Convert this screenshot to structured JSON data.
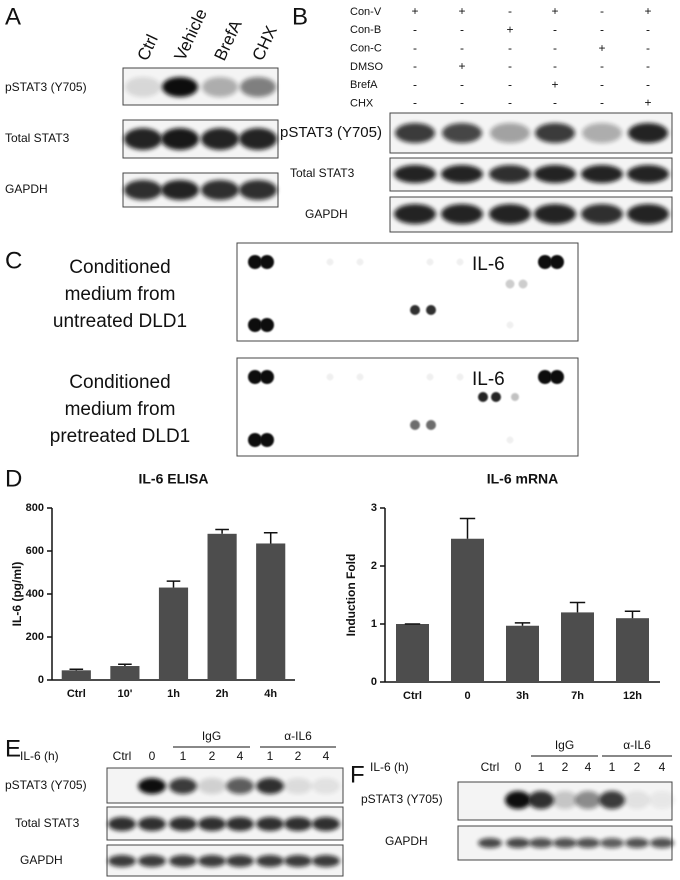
{
  "panel_labels": [
    "A",
    "B",
    "C",
    "D",
    "E",
    "F"
  ],
  "panel_a": {
    "columns": [
      "Ctrl",
      "Vehicle",
      "BrefA",
      "CHX"
    ],
    "rows": [
      "pSTAT3 (Y705)",
      "Total STAT3",
      "GAPDH"
    ]
  },
  "panel_b": {
    "conditions": [
      {
        "name": "Con-V",
        "signs": [
          "+",
          "+",
          "-",
          "+",
          "-",
          "+"
        ]
      },
      {
        "name": "Con-B",
        "signs": [
          "-",
          "-",
          "+",
          "-",
          "-",
          "-"
        ]
      },
      {
        "name": "Con-C",
        "signs": [
          "-",
          "-",
          "-",
          "-",
          "+",
          "-"
        ]
      },
      {
        "name": "DMSO",
        "signs": [
          "-",
          "+",
          "-",
          "-",
          "-",
          "-"
        ]
      },
      {
        "name": "BrefA",
        "signs": [
          "-",
          "-",
          "-",
          "+",
          "-",
          "-"
        ]
      },
      {
        "name": "CHX",
        "signs": [
          "-",
          "-",
          "-",
          "-",
          "-",
          "+"
        ]
      }
    ],
    "rows": [
      "pSTAT3 (Y705)",
      "Total STAT3",
      "GAPDH"
    ]
  },
  "panel_c": {
    "arrays": [
      {
        "label_lines": [
          "Conditioned",
          "medium from",
          "untreated DLD1"
        ],
        "spot_label": "IL-6"
      },
      {
        "label_lines": [
          "Conditioned",
          "medium from",
          "pretreated DLD1"
        ],
        "spot_label": "IL-6"
      }
    ]
  },
  "panel_e": {
    "row_label": "IL-6 (h)",
    "lanes": [
      "Ctrl",
      "0",
      "1",
      "2",
      "4",
      "1",
      "2",
      "4"
    ],
    "groups": [
      "IgG",
      "α-IL6"
    ],
    "rows": [
      "pSTAT3 (Y705)",
      "Total STAT3",
      "GAPDH"
    ]
  },
  "panel_f": {
    "row_label": "IL-6 (h)",
    "lanes": [
      "Ctrl",
      "0",
      "1",
      "2",
      "4",
      "1",
      "2",
      "4"
    ],
    "groups": [
      "IgG",
      "α-IL6"
    ],
    "rows": [
      "pSTAT3 (Y705)",
      "GAPDH"
    ]
  },
  "chart_data": [
    {
      "type": "bar",
      "title": "IL-6 ELISA",
      "y_label": "IL-6 (pg/ml)",
      "categories": [
        "Ctrl",
        "10'",
        "1h",
        "2h",
        "4h"
      ],
      "values": [
        45,
        65,
        430,
        680,
        635
      ],
      "errors": [
        5,
        8,
        30,
        20,
        50
      ],
      "color": "#4d4d4d",
      "ylim": [
        0,
        800
      ],
      "yticks": [
        0,
        200,
        400,
        600,
        800
      ]
    },
    {
      "type": "bar",
      "title": "IL-6 mRNA",
      "y_label": "Induction Fold",
      "categories": [
        "Ctrl",
        "0",
        "3h",
        "7h",
        "12h"
      ],
      "values": [
        1.0,
        2.47,
        0.97,
        1.2,
        1.1
      ],
      "errors": [
        0,
        0.35,
        0.05,
        0.17,
        0.12
      ],
      "color": "#4d4d4d",
      "ylim": [
        0,
        3
      ],
      "yticks": [
        0,
        1,
        2,
        3
      ]
    }
  ]
}
